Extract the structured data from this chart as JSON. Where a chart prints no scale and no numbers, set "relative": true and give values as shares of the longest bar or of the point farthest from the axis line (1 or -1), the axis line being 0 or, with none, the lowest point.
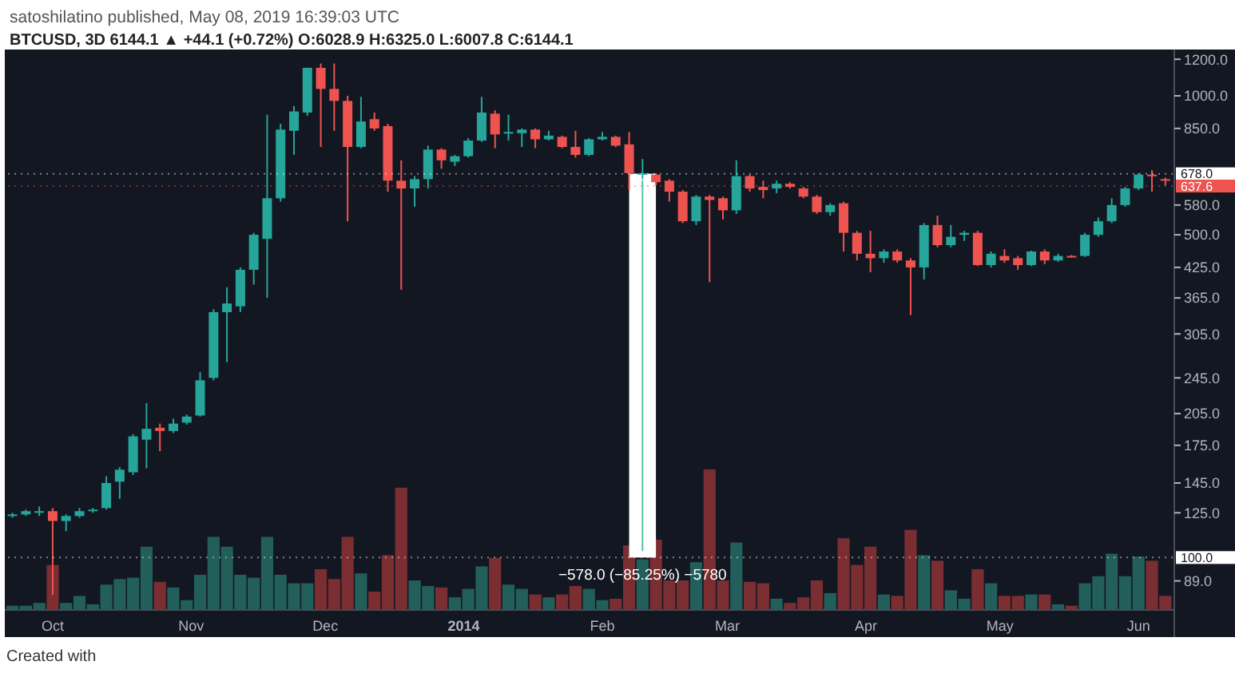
{
  "chart_data": [
    {
      "type": "candlestick",
      "title": "satoshilatino published, May 08, 2019 16:39:03 UTC",
      "subtitle": "BTCUSD, 3D 6144.1 ▲ +44.1 (+0.72%) O:6028.9 H:6325.0 L:6007.8 C:6144.1",
      "x": [
        "2013-09-22",
        "2013-09-25",
        "2013-09-28",
        "2013-10-01",
        "2013-10-04",
        "2013-10-07",
        "2013-10-10",
        "2013-10-13",
        "2013-10-16",
        "2013-10-19",
        "2013-10-22",
        "2013-10-25",
        "2013-10-28",
        "2013-10-31",
        "2013-11-03",
        "2013-11-06",
        "2013-11-09",
        "2013-11-12",
        "2013-11-15",
        "2013-11-18",
        "2013-11-21",
        "2013-11-24",
        "2013-11-27",
        "2013-11-30",
        "2013-12-03",
        "2013-12-06",
        "2013-12-09",
        "2013-12-12",
        "2013-12-15",
        "2013-12-18",
        "2013-12-21",
        "2013-12-24",
        "2013-12-27",
        "2013-12-30",
        "2014-01-02",
        "2014-01-05",
        "2014-01-08",
        "2014-01-11",
        "2014-01-14",
        "2014-01-17",
        "2014-01-20",
        "2014-01-23",
        "2014-01-26",
        "2014-01-29",
        "2014-02-01",
        "2014-02-04",
        "2014-02-07",
        "2014-02-10",
        "2014-02-13",
        "2014-02-16",
        "2014-02-19",
        "2014-02-22",
        "2014-02-25",
        "2014-02-28",
        "2014-03-03",
        "2014-03-06",
        "2014-03-09",
        "2014-03-12",
        "2014-03-15",
        "2014-03-18",
        "2014-03-21",
        "2014-03-24",
        "2014-03-27",
        "2014-03-30",
        "2014-04-02",
        "2014-04-05",
        "2014-04-08",
        "2014-04-11",
        "2014-04-14",
        "2014-04-17",
        "2014-04-20",
        "2014-04-23",
        "2014-04-26",
        "2014-04-29",
        "2014-05-02",
        "2014-05-05",
        "2014-05-08",
        "2014-05-11",
        "2014-05-14",
        "2014-05-17",
        "2014-05-20",
        "2014-05-23",
        "2014-05-26",
        "2014-05-29",
        "2014-06-01",
        "2014-06-04",
        "2014-06-07"
      ],
      "ohlc": [
        [
          123,
          125,
          122,
          124
        ],
        [
          124,
          127,
          123,
          126
        ],
        [
          125,
          129,
          123,
          126
        ],
        [
          126,
          128,
          83,
          120
        ],
        [
          120,
          124,
          114,
          123
        ],
        [
          123,
          128,
          122,
          126
        ],
        [
          126,
          128,
          125,
          127
        ],
        [
          128,
          150,
          127,
          145
        ],
        [
          146,
          157,
          134,
          155
        ],
        [
          153,
          185,
          151,
          183
        ],
        [
          180,
          216,
          156,
          190
        ],
        [
          191,
          195,
          170,
          188
        ],
        [
          188,
          200,
          186,
          195
        ],
        [
          196,
          204,
          194,
          202
        ],
        [
          203,
          252,
          202,
          242
        ],
        [
          245,
          345,
          242,
          340
        ],
        [
          340,
          385,
          265,
          355
        ],
        [
          350,
          425,
          340,
          420
        ],
        [
          420,
          505,
          390,
          500
        ],
        [
          490,
          910,
          365,
          600
        ],
        [
          600,
          870,
          590,
          845
        ],
        [
          840,
          950,
          745,
          925
        ],
        [
          920,
          1150,
          905,
          1150
        ],
        [
          1150,
          1175,
          775,
          1035
        ],
        [
          1035,
          1175,
          840,
          975
        ],
        [
          975,
          1000,
          535,
          775
        ],
        [
          775,
          995,
          770,
          880
        ],
        [
          890,
          920,
          840,
          850
        ],
        [
          860,
          870,
          620,
          655
        ],
        [
          655,
          725,
          380,
          630
        ],
        [
          630,
          670,
          575,
          660
        ],
        [
          660,
          780,
          630,
          765
        ],
        [
          765,
          770,
          695,
          725
        ],
        [
          720,
          745,
          705,
          740
        ],
        [
          740,
          810,
          735,
          800
        ],
        [
          800,
          995,
          795,
          920
        ],
        [
          915,
          930,
          770,
          825
        ],
        [
          830,
          910,
          800,
          835
        ],
        [
          830,
          850,
          775,
          845
        ],
        [
          845,
          850,
          770,
          805
        ],
        [
          805,
          840,
          800,
          820
        ],
        [
          815,
          820,
          770,
          775
        ],
        [
          775,
          840,
          735,
          745
        ],
        [
          745,
          810,
          740,
          805
        ],
        [
          805,
          835,
          800,
          815
        ],
        [
          815,
          820,
          775,
          780
        ],
        [
          785,
          835,
          625,
          680
        ],
        [
          675,
          730,
          660,
          680
        ],
        [
          675,
          680,
          640,
          650
        ],
        [
          655,
          660,
          590,
          620
        ],
        [
          620,
          625,
          530,
          535
        ],
        [
          535,
          610,
          525,
          605
        ],
        [
          605,
          610,
          395,
          595
        ],
        [
          600,
          605,
          540,
          565
        ],
        [
          565,
          725,
          555,
          670
        ],
        [
          670,
          675,
          620,
          630
        ],
        [
          635,
          655,
          600,
          625
        ],
        [
          630,
          655,
          615,
          645
        ],
        [
          645,
          650,
          630,
          635
        ],
        [
          630,
          635,
          600,
          605
        ],
        [
          605,
          610,
          555,
          560
        ],
        [
          560,
          585,
          550,
          580
        ],
        [
          585,
          590,
          460,
          505
        ],
        [
          505,
          510,
          440,
          455
        ],
        [
          455,
          510,
          415,
          445
        ],
        [
          445,
          465,
          435,
          460
        ],
        [
          460,
          465,
          435,
          440
        ],
        [
          440,
          445,
          335,
          425
        ],
        [
          425,
          530,
          400,
          525
        ],
        [
          525,
          550,
          470,
          475
        ],
        [
          475,
          525,
          470,
          495
        ],
        [
          500,
          510,
          485,
          505
        ],
        [
          505,
          510,
          428,
          430
        ],
        [
          430,
          460,
          425,
          455
        ],
        [
          450,
          465,
          435,
          440
        ],
        [
          445,
          450,
          420,
          430
        ],
        [
          430,
          462,
          428,
          460
        ],
        [
          460,
          465,
          432,
          440
        ],
        [
          440,
          455,
          437,
          450
        ],
        [
          450,
          452,
          446,
          448
        ],
        [
          450,
          505,
          448,
          500
        ],
        [
          500,
          545,
          495,
          535
        ],
        [
          535,
          600,
          530,
          580
        ],
        [
          580,
          635,
          575,
          630
        ],
        [
          630,
          680,
          625,
          675
        ],
        [
          675,
          690,
          620,
          670
        ],
        [
          660,
          665,
          640,
          655
        ]
      ],
      "colors": [
        "#26a69a",
        "#26a69a",
        "#26a69a",
        "#ef5350",
        "#26a69a",
        "#26a69a",
        "#26a69a",
        "#26a69a",
        "#26a69a",
        "#26a69a",
        "#26a69a",
        "#ef5350",
        "#26a69a",
        "#26a69a",
        "#26a69a",
        "#26a69a",
        "#26a69a",
        "#26a69a",
        "#26a69a",
        "#26a69a",
        "#26a69a",
        "#26a69a",
        "#26a69a",
        "#ef5350",
        "#ef5350",
        "#ef5350",
        "#26a69a",
        "#ef5350",
        "#ef5350",
        "#ef5350",
        "#26a69a",
        "#26a69a",
        "#ef5350",
        "#26a69a",
        "#26a69a",
        "#26a69a",
        "#ef5350",
        "#26a69a",
        "#26a69a",
        "#ef5350",
        "#26a69a",
        "#ef5350",
        "#ef5350",
        "#26a69a",
        "#26a69a",
        "#ef5350",
        "#ef5350",
        "#26a69a",
        "#ef5350",
        "#ef5350",
        "#ef5350",
        "#26a69a",
        "#ef5350",
        "#ef5350",
        "#26a69a",
        "#ef5350",
        "#ef5350",
        "#26a69a",
        "#ef5350",
        "#ef5350",
        "#ef5350",
        "#26a69a",
        "#ef5350",
        "#ef5350",
        "#ef5350",
        "#26a69a",
        "#ef5350",
        "#ef5350",
        "#26a69a",
        "#ef5350",
        "#26a69a",
        "#26a69a",
        "#ef5350",
        "#26a69a",
        "#ef5350",
        "#ef5350",
        "#26a69a",
        "#ef5350",
        "#26a69a",
        "#ef5350",
        "#26a69a",
        "#26a69a",
        "#26a69a",
        "#26a69a",
        "#26a69a",
        "#ef5350",
        "#ef5350"
      ],
      "xlim": [
        "2013-09-21",
        "2014-06-09"
      ],
      "xticks": [
        {
          "value": "2013-10-01",
          "label": "Oct"
        },
        {
          "value": "2013-11-01",
          "label": "Nov"
        },
        {
          "value": "2013-12-01",
          "label": "Dec"
        },
        {
          "value": "2014-01-01",
          "label": "2014"
        },
        {
          "value": "2014-02-01",
          "label": "Feb"
        },
        {
          "value": "2014-03-01",
          "label": "Mar"
        },
        {
          "value": "2014-04-01",
          "label": "Apr"
        },
        {
          "value": "2014-05-01",
          "label": "May"
        },
        {
          "value": "2014-06-01",
          "label": "Jun"
        }
      ],
      "ylim": [
        77,
        1240
      ],
      "log": "y",
      "yticks": [
        {
          "value": 89,
          "label": "89.0"
        },
        {
          "value": 125,
          "label": "125.0"
        },
        {
          "value": 145,
          "label": "145.0"
        },
        {
          "value": 175,
          "label": "175.0"
        },
        {
          "value": 205,
          "label": "205.0"
        },
        {
          "value": 245,
          "label": "245.0"
        },
        {
          "value": 305,
          "label": "305.0"
        },
        {
          "value": 365,
          "label": "365.0"
        },
        {
          "value": 425,
          "label": "425.0"
        },
        {
          "value": 500,
          "label": "500.0"
        },
        {
          "value": 580,
          "label": "580.0"
        },
        {
          "value": 850,
          "label": "850.0"
        },
        {
          "value": 1000,
          "label": "1000.0"
        },
        {
          "value": 1200,
          "label": "1200.0"
        }
      ],
      "ref_lines": [
        {
          "axis": "y",
          "value": 678,
          "label": "678.0",
          "color": "#ffffff"
        },
        {
          "axis": "y",
          "value": 637.6,
          "label": "637.6",
          "color": "#ef5350"
        },
        {
          "axis": "y",
          "value": 100,
          "label": "100.0",
          "color": "#ffffff"
        }
      ],
      "bands": [
        {
          "axis": "x",
          "from": "2014-02-07",
          "to": "2014-02-13",
          "color": "#ffffff"
        }
      ],
      "annotations": [
        "−578.0 (−85.25%) −5780",
        "Created with"
      ]
    },
    {
      "type": "bar",
      "relative": true,
      "xlim": [
        "2013-09-21",
        "2014-06-09"
      ],
      "x": [
        "2013-09-22",
        "2013-09-25",
        "2013-09-28",
        "2013-10-01",
        "2013-10-04",
        "2013-10-07",
        "2013-10-10",
        "2013-10-13",
        "2013-10-16",
        "2013-10-19",
        "2013-10-22",
        "2013-10-25",
        "2013-10-28",
        "2013-10-31",
        "2013-11-03",
        "2013-11-06",
        "2013-11-09",
        "2013-11-12",
        "2013-11-15",
        "2013-11-18",
        "2013-11-21",
        "2013-11-24",
        "2013-11-27",
        "2013-11-30",
        "2013-12-03",
        "2013-12-06",
        "2013-12-09",
        "2013-12-12",
        "2013-12-15",
        "2013-12-18",
        "2013-12-21",
        "2013-12-24",
        "2013-12-27",
        "2013-12-30",
        "2014-01-02",
        "2014-01-05",
        "2014-01-08",
        "2014-01-11",
        "2014-01-14",
        "2014-01-17",
        "2014-01-20",
        "2014-01-23",
        "2014-01-26",
        "2014-01-29",
        "2014-02-01",
        "2014-02-04",
        "2014-02-07",
        "2014-02-10",
        "2014-02-13",
        "2014-02-16",
        "2014-02-19",
        "2014-02-22",
        "2014-02-25",
        "2014-02-28",
        "2014-03-03",
        "2014-03-06",
        "2014-03-09",
        "2014-03-12",
        "2014-03-15",
        "2014-03-18",
        "2014-03-21",
        "2014-03-24",
        "2014-03-27",
        "2014-03-30",
        "2014-04-02",
        "2014-04-05",
        "2014-04-08",
        "2014-04-11",
        "2014-04-14",
        "2014-04-17",
        "2014-04-20",
        "2014-04-23",
        "2014-04-26",
        "2014-04-29",
        "2014-05-02",
        "2014-05-05",
        "2014-05-08",
        "2014-05-11",
        "2014-05-14",
        "2014-05-17",
        "2014-05-20",
        "2014-05-23",
        "2014-05-26",
        "2014-05-29",
        "2014-06-01",
        "2014-06-04",
        "2014-06-07"
      ],
      "values": [
        0.03,
        0.03,
        0.05,
        0.32,
        0.05,
        0.1,
        0.04,
        0.18,
        0.22,
        0.23,
        0.45,
        0.2,
        0.16,
        0.07,
        0.25,
        0.52,
        0.45,
        0.25,
        0.23,
        0.52,
        0.25,
        0.19,
        0.19,
        0.29,
        0.22,
        0.52,
        0.26,
        0.13,
        0.39,
        0.87,
        0.21,
        0.17,
        0.16,
        0.09,
        0.15,
        0.31,
        0.37,
        0.18,
        0.15,
        0.11,
        0.09,
        0.11,
        0.17,
        0.15,
        0.07,
        0.08,
        0.46,
        0.36,
        0.5,
        0.21,
        0.21,
        0.34,
        1,
        0.21,
        0.48,
        0.2,
        0.19,
        0.08,
        0.05,
        0.09,
        0.21,
        0.12,
        0.51,
        0.32,
        0.45,
        0.11,
        0.1,
        0.57,
        0.39,
        0.35,
        0.14,
        0.08,
        0.29,
        0.19,
        0.1,
        0.1,
        0.11,
        0.11,
        0.04,
        0.03,
        0.19,
        0.24,
        0.4,
        0.24,
        0.38,
        0.35,
        0.1
      ],
      "colors": [
        "#225e5a",
        "#225e5a",
        "#225e5a",
        "#7a2e31",
        "#225e5a",
        "#225e5a",
        "#225e5a",
        "#225e5a",
        "#225e5a",
        "#225e5a",
        "#225e5a",
        "#7a2e31",
        "#225e5a",
        "#225e5a",
        "#225e5a",
        "#225e5a",
        "#225e5a",
        "#225e5a",
        "#225e5a",
        "#225e5a",
        "#225e5a",
        "#225e5a",
        "#225e5a",
        "#7a2e31",
        "#7a2e31",
        "#7a2e31",
        "#225e5a",
        "#7a2e31",
        "#7a2e31",
        "#7a2e31",
        "#225e5a",
        "#225e5a",
        "#7a2e31",
        "#225e5a",
        "#225e5a",
        "#225e5a",
        "#7a2e31",
        "#225e5a",
        "#225e5a",
        "#7a2e31",
        "#225e5a",
        "#7a2e31",
        "#7a2e31",
        "#225e5a",
        "#225e5a",
        "#7a2e31",
        "#7a2e31",
        "#225e5a",
        "#7a2e31",
        "#7a2e31",
        "#7a2e31",
        "#225e5a",
        "#7a2e31",
        "#7a2e31",
        "#225e5a",
        "#7a2e31",
        "#7a2e31",
        "#225e5a",
        "#7a2e31",
        "#7a2e31",
        "#7a2e31",
        "#225e5a",
        "#7a2e31",
        "#7a2e31",
        "#7a2e31",
        "#225e5a",
        "#7a2e31",
        "#7a2e31",
        "#225e5a",
        "#7a2e31",
        "#225e5a",
        "#225e5a",
        "#7a2e31",
        "#225e5a",
        "#7a2e31",
        "#7a2e31",
        "#225e5a",
        "#7a2e31",
        "#225e5a",
        "#7a2e31",
        "#225e5a",
        "#225e5a",
        "#225e5a",
        "#225e5a",
        "#225e5a",
        "#7a2e31",
        "#7a2e31"
      ]
    }
  ]
}
